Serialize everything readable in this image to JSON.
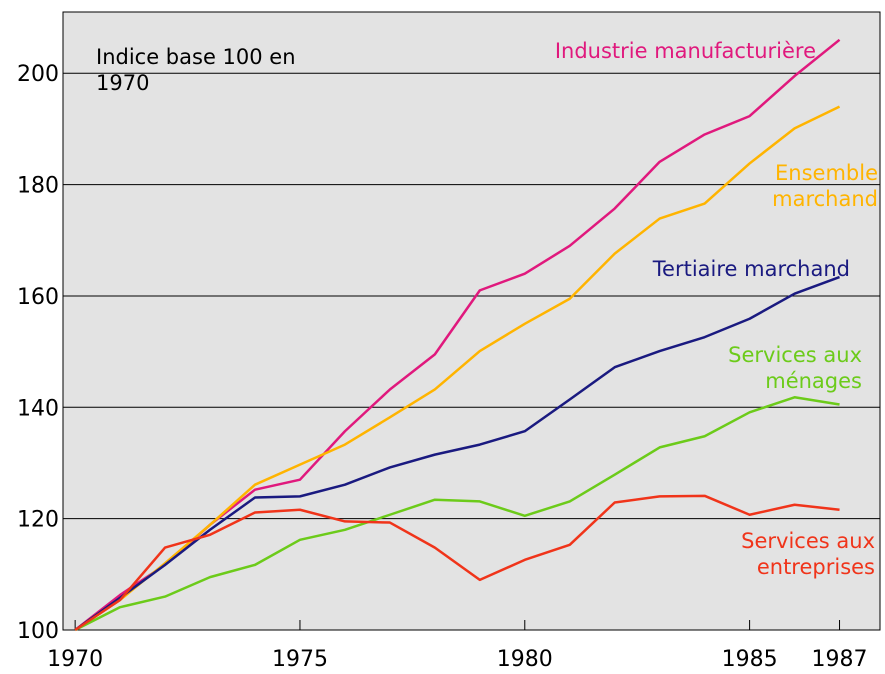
{
  "chart_data": {
    "type": "line",
    "title": "Indice base 100 en 1970",
    "x": [
      1970,
      1971,
      1972,
      1973,
      1974,
      1975,
      1976,
      1977,
      1978,
      1979,
      1980,
      1981,
      1982,
      1983,
      1984,
      1985,
      1986,
      1987
    ],
    "series": [
      {
        "name": "Industrie manufacturière",
        "color": "#e0197d",
        "values": [
          100,
          106.3,
          111.7,
          118.9,
          125.2,
          127.0,
          135.7,
          143.2,
          149.5,
          161.0,
          164.0,
          169.0,
          175.7,
          184.1,
          189.0,
          192.3,
          199.5,
          206.0
        ]
      },
      {
        "name": "Ensemble marchand",
        "color": "#ffb400",
        "values": [
          100,
          105.4,
          112.0,
          118.9,
          126.1,
          129.7,
          133.3,
          138.2,
          143.2,
          150.1,
          155.0,
          159.5,
          167.6,
          173.9,
          176.6,
          183.8,
          190.1,
          194.0
        ]
      },
      {
        "name": "Tertiaire marchand",
        "color": "#1a1a80",
        "values": [
          100,
          105.8,
          111.7,
          118.0,
          123.8,
          124.0,
          126.1,
          129.2,
          131.5,
          133.3,
          135.7,
          141.4,
          147.2,
          150.1,
          152.6,
          155.9,
          160.4,
          163.4
        ]
      },
      {
        "name": "Services aux ménages",
        "color": "#6ccb1a",
        "values": [
          100,
          104.1,
          106.0,
          109.5,
          111.7,
          116.2,
          118.0,
          120.7,
          123.4,
          123.1,
          120.5,
          123.1,
          127.9,
          132.8,
          134.8,
          139.1,
          141.8,
          140.5
        ]
      },
      {
        "name": "Services aux entreprises",
        "color": "#f0341a",
        "values": [
          100,
          105.4,
          114.8,
          117.1,
          121.1,
          121.6,
          119.5,
          119.3,
          114.8,
          109.0,
          112.6,
          115.3,
          122.9,
          124.0,
          124.1,
          120.7,
          122.5,
          121.6
        ]
      }
    ],
    "xlim": [
      1969.73,
      1987.9
    ],
    "xticks": [
      1970,
      1975,
      1980,
      1985,
      1987
    ],
    "ylim": [
      100,
      211
    ],
    "yticks": [
      100,
      120,
      140,
      160,
      180,
      200
    ],
    "grid": true
  }
}
